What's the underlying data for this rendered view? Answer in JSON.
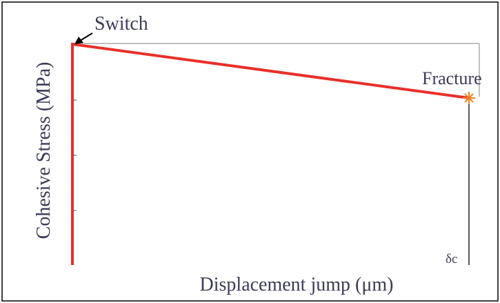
{
  "diagram": {
    "y_axis_label": "Cohesive Stress (MPa)",
    "x_axis_label": "Displacement jump (μm)",
    "annotations": {
      "switch": "Switch",
      "fracture": "Fracture",
      "critical_jump": "δc"
    }
  }
}
